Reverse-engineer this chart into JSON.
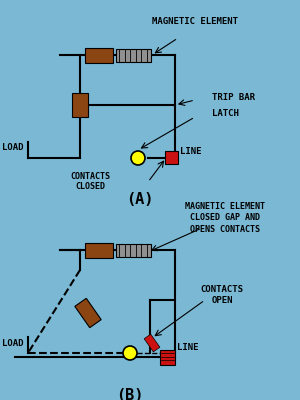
{
  "bg_color": "#7ab8d4",
  "brown_color": "#8B4513",
  "gray_color": "#909090",
  "red_color": "#CC1111",
  "yellow_color": "#FFFF00",
  "black_color": "#000000",
  "lw": 1.5,
  "title_A": "(A)",
  "title_B": "(B)",
  "label_magnetic_A": "MAGNETIC ELEMENT",
  "label_trip": "TRIP BAR",
  "label_latch": "LATCH",
  "label_load_A": "LOAD",
  "label_line_A": "LINE",
  "label_contacts_closed": "CONTACTS\nCLOSED",
  "label_magnetic_B": "MAGNETIC ELEMENT\nCLOSED GAP AND\nOPENS CONTACTS",
  "label_contacts_open": "CONTACTS\nOPEN",
  "label_line_B": "LINE",
  "label_load_B": "LOAD"
}
